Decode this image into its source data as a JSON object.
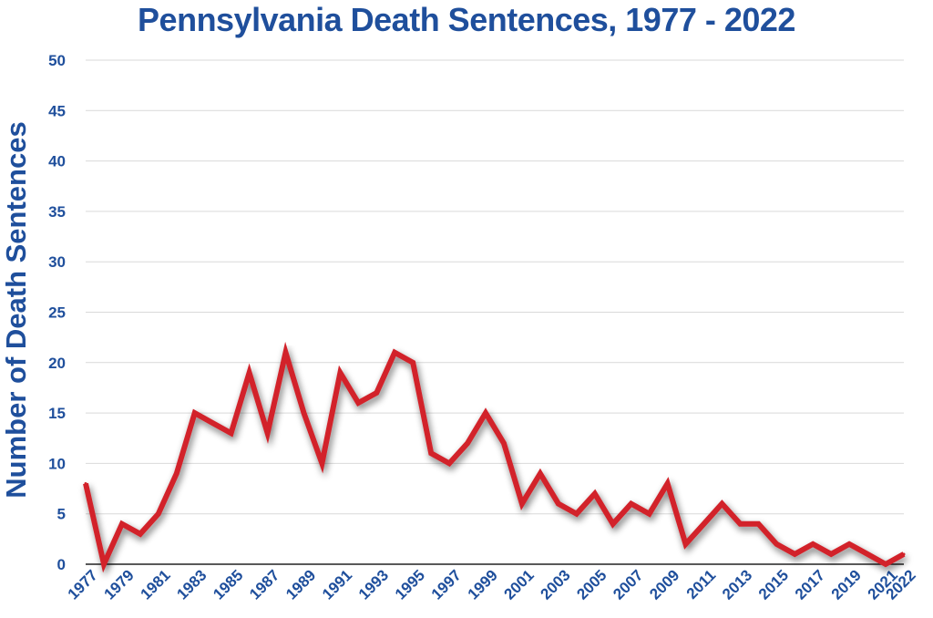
{
  "chart_data": {
    "type": "line",
    "title": "Pennsylvania Death Sentences, 1977 - 2022",
    "xlabel": "",
    "ylabel": "Number of Death Sentences",
    "ylim": [
      0,
      50
    ],
    "yticks": [
      0,
      5,
      10,
      15,
      20,
      25,
      30,
      35,
      40,
      45,
      50
    ],
    "xticks": [
      "1977",
      "1979",
      "1981",
      "1983",
      "1985",
      "1987",
      "1989",
      "1991",
      "1993",
      "1995",
      "1997",
      "1999",
      "2001",
      "2003",
      "2005",
      "2007",
      "2009",
      "2011",
      "2013",
      "2015",
      "2017",
      "2019",
      "2021",
      "2022"
    ],
    "grid": true,
    "line_color": "#d2232a",
    "axis_color": "#1f4f9c",
    "x": [
      1977,
      1978,
      1979,
      1980,
      1981,
      1982,
      1983,
      1984,
      1985,
      1986,
      1987,
      1988,
      1989,
      1990,
      1991,
      1992,
      1993,
      1994,
      1995,
      1996,
      1997,
      1998,
      1999,
      2000,
      2001,
      2002,
      2003,
      2004,
      2005,
      2006,
      2007,
      2008,
      2009,
      2010,
      2011,
      2012,
      2013,
      2014,
      2015,
      2016,
      2017,
      2018,
      2019,
      2020,
      2021,
      2022
    ],
    "values": [
      8,
      0,
      4,
      3,
      5,
      9,
      15,
      14,
      13,
      19,
      13,
      21,
      15,
      10,
      19,
      16,
      17,
      21,
      20,
      11,
      10,
      12,
      15,
      12,
      6,
      9,
      6,
      5,
      7,
      4,
      6,
      5,
      8,
      2,
      4,
      6,
      4,
      4,
      2,
      1,
      2,
      1,
      2,
      1,
      0,
      1
    ]
  }
}
